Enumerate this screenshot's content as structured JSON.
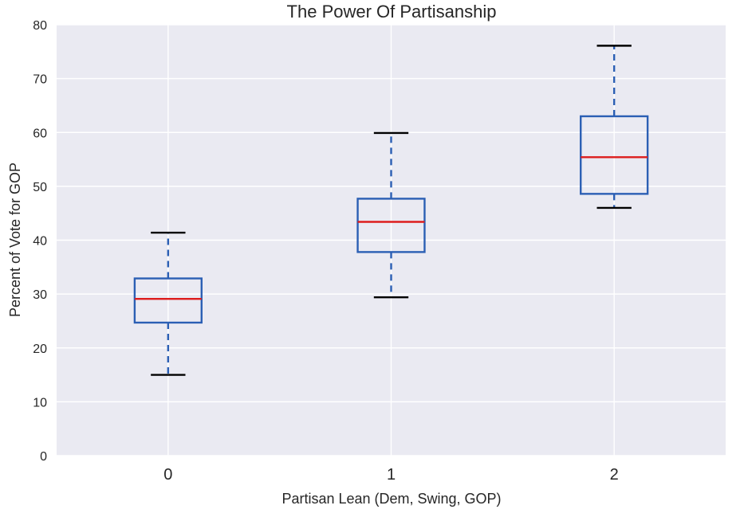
{
  "chart_data": {
    "type": "box",
    "title": "The Power Of Partisanship",
    "xlabel": "Partisan Lean (Dem, Swing, GOP)",
    "ylabel": "Percent of Vote for GOP",
    "ylim": [
      0,
      80
    ],
    "yticks": [
      "0",
      "10",
      "20",
      "30",
      "40",
      "50",
      "60",
      "70",
      "80"
    ],
    "categories": [
      "0",
      "1",
      "2"
    ],
    "boxes": [
      {
        "category": "0",
        "whisker_low": 15.0,
        "q1": 24.7,
        "median": 29.1,
        "q3": 32.9,
        "whisker_high": 41.4
      },
      {
        "category": "1",
        "whisker_low": 29.4,
        "q1": 37.8,
        "median": 43.4,
        "q3": 47.7,
        "whisker_high": 59.9
      },
      {
        "category": "2",
        "whisker_low": 46.0,
        "q1": 48.6,
        "median": 55.4,
        "q3": 63.0,
        "whisker_high": 76.1
      }
    ],
    "grid": true,
    "colors": {
      "plot_background": "#eaeaf2",
      "grid": "#ffffff",
      "box": "#2b5fb4",
      "median": "#dd1c1c",
      "cap": "#000000"
    }
  }
}
